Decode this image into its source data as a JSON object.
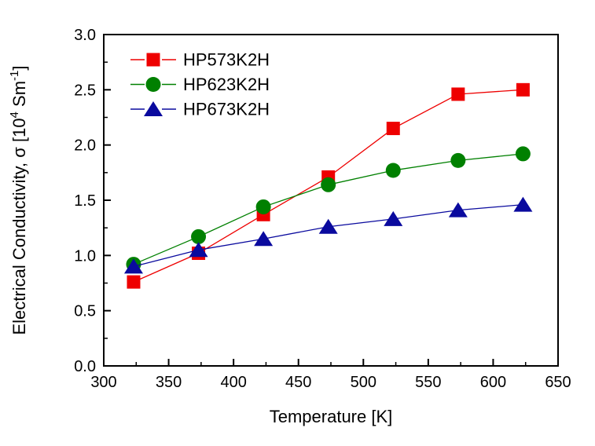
{
  "chart_data": {
    "type": "line",
    "title": "",
    "xlabel": "Temperature [K]",
    "ylabel": "Electrical Conductivity, σ [10⁴ Sm⁻¹]",
    "ylabel_parts": [
      {
        "text": "Electrical Conductivity, σ [10",
        "sup": false
      },
      {
        "text": "4",
        "sup": true
      },
      {
        "text": " Sm",
        "sup": false
      },
      {
        "text": "-1",
        "sup": true
      },
      {
        "text": "]",
        "sup": false
      }
    ],
    "x": [
      323,
      373,
      423,
      473,
      523,
      573,
      623
    ],
    "series": [
      {
        "name": "HP573K2H",
        "marker": "square",
        "color": "#ee0000",
        "values": [
          0.76,
          1.02,
          1.37,
          1.71,
          2.15,
          2.46,
          2.5
        ]
      },
      {
        "name": "HP623K2H",
        "marker": "circle",
        "color": "#008000",
        "values": [
          0.92,
          1.17,
          1.44,
          1.64,
          1.77,
          1.86,
          1.92
        ]
      },
      {
        "name": "HP673K2H",
        "marker": "triangle",
        "color": "#0a0a9e",
        "values": [
          0.9,
          1.05,
          1.15,
          1.26,
          1.33,
          1.41,
          1.46
        ]
      }
    ],
    "xlim": [
      300,
      650
    ],
    "ylim": [
      0.0,
      3.0
    ],
    "x_major_step": 50,
    "x_minor_step": 25,
    "y_major_step": 0.5,
    "y_minor_step": 0.25,
    "x_tick_labels": [
      "300",
      "350",
      "400",
      "450",
      "500",
      "550",
      "600",
      "650"
    ],
    "y_tick_labels": [
      "0.0",
      "0.5",
      "1.0",
      "1.5",
      "2.0",
      "2.5",
      "3.0"
    ],
    "grid": false,
    "legend_position": "top-left",
    "axis_color": "#000000",
    "background_color": "#ffffff"
  }
}
